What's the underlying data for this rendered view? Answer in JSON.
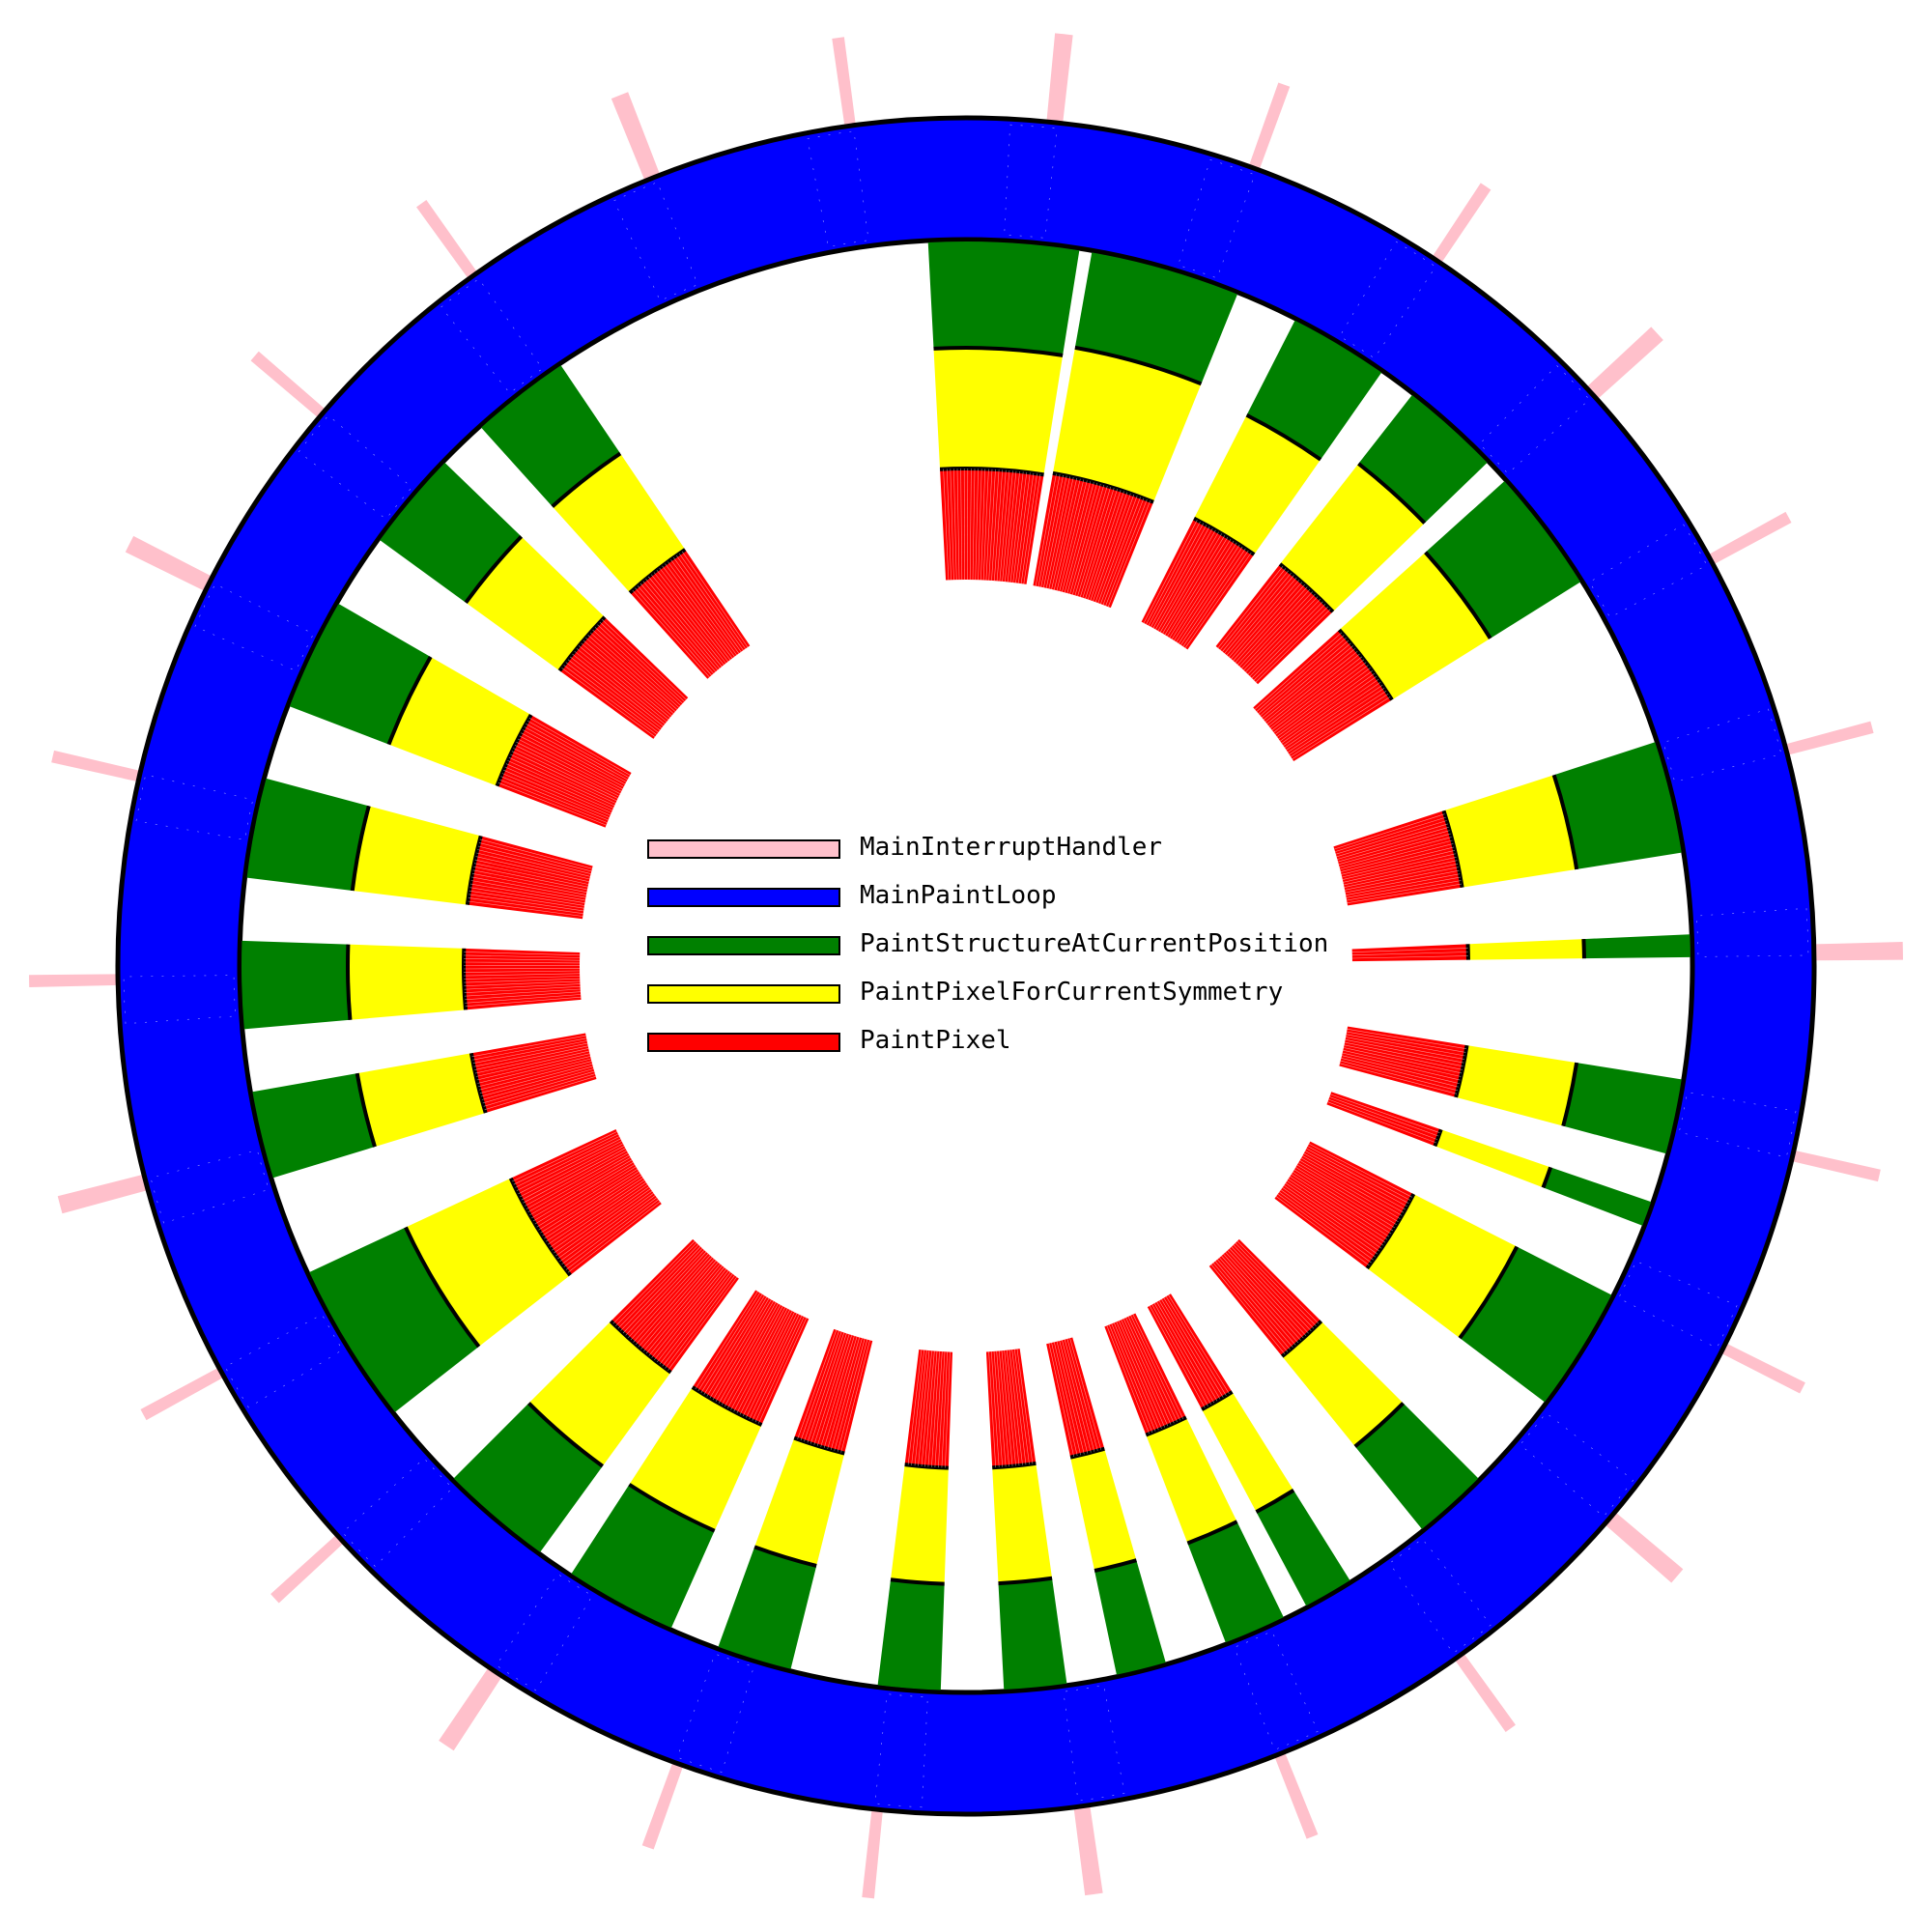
{
  "legend": {
    "items": [
      {
        "label": "MainInterruptHandler",
        "color": "#ffc0cb"
      },
      {
        "label": "MainPaintLoop",
        "color": "#0000ff"
      },
      {
        "label": "PaintStructureAtCurrentPosition",
        "color": "#008000"
      },
      {
        "label": "PaintPixelForCurrentSymmetry",
        "color": "#ffff00"
      },
      {
        "label": "PaintPixel",
        "color": "#ff0000"
      }
    ]
  },
  "diagram": {
    "type": "sunburst call-tree profile",
    "colors": {
      "outline": "#000000",
      "dots": "#ffffff"
    },
    "sector_count": 26
  }
}
